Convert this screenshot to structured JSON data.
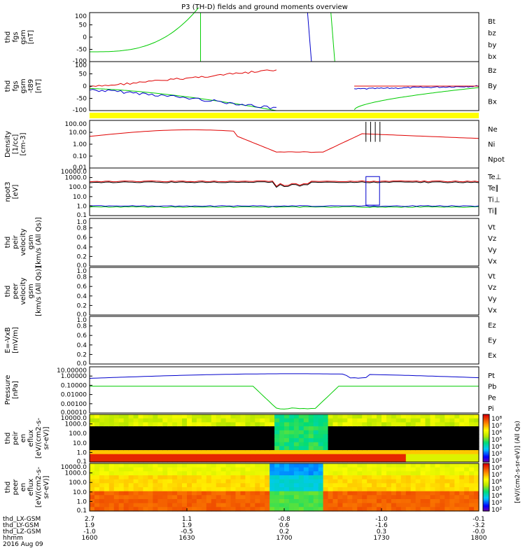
{
  "title": "P3 (TH-D) fields and ground moments overview",
  "date": "2016 Aug 09",
  "colors": {
    "black": "#000000",
    "red": "#e00000",
    "green": "#00cc00",
    "blue": "#0000cc",
    "yellow": "#ffff00"
  },
  "panels": [
    {
      "id": "fgs_gsm",
      "ylabel": [
        "thd",
        "fgs",
        "gsm",
        "[nT]"
      ],
      "ticks": [
        "100",
        "50",
        "0",
        "-50",
        "-100"
      ],
      "legend": [
        {
          "t": "Bt",
          "c": "black"
        },
        {
          "t": "bz",
          "c": "red"
        },
        {
          "t": "by",
          "c": "green"
        },
        {
          "t": "bx",
          "c": "blue"
        }
      ]
    },
    {
      "id": "fgs_gsm_bg",
      "ylabel": [
        "thd",
        "fgs",
        "gsm",
        "-t89",
        "[nT]"
      ],
      "ticks": [
        "100",
        "50",
        "0",
        "-50",
        "-100"
      ],
      "legend": [
        {
          "t": "Bz",
          "c": "red"
        },
        {
          "t": "By",
          "c": "green"
        },
        {
          "t": "Bx",
          "c": "blue"
        }
      ]
    },
    {
      "id": "density",
      "ylabel": [
        "Density",
        "[1/cc]",
        "[cm-3]"
      ],
      "ticks": [
        "100.00",
        "10.00",
        "1.00",
        "0.10",
        "0.01"
      ],
      "legend": [
        {
          "t": "Ne",
          "c": "red"
        },
        {
          "t": "Ni",
          "c": "black"
        },
        {
          "t": "Npot",
          "c": "blue"
        }
      ]
    },
    {
      "id": "temp",
      "ylabel": [
        "npot3",
        "[eV]"
      ],
      "ticks": [
        "10000.0",
        "1000.0",
        "100.0",
        "10.0",
        "1.0",
        "0.1"
      ],
      "legend": [
        {
          "t": "Te⊥",
          "c": "red"
        },
        {
          "t": "Te∥",
          "c": "black"
        },
        {
          "t": "Ti⊥",
          "c": "green"
        },
        {
          "t": "Ti∥",
          "c": "green"
        }
      ]
    },
    {
      "id": "peir_vel",
      "ylabel": [
        "thd",
        "peir",
        "velocity",
        "gsm",
        "[km/s (All Qs)]"
      ],
      "ticks": [
        "1.0",
        "0.8",
        "0.6",
        "0.4",
        "0.2",
        "0.0"
      ],
      "legend": [
        {
          "t": "Vt",
          "c": "black"
        },
        {
          "t": "Vz",
          "c": "red"
        },
        {
          "t": "Vy",
          "c": "green"
        },
        {
          "t": "Vx",
          "c": "blue"
        }
      ]
    },
    {
      "id": "peer_vel",
      "ylabel": [
        "thd",
        "peer",
        "velocity",
        "gsm",
        "[km/s (All Qs)]"
      ],
      "ticks": [
        "1.0",
        "0.8",
        "0.6",
        "0.4",
        "0.2",
        "0.0"
      ],
      "legend": [
        {
          "t": "Vt",
          "c": "black"
        },
        {
          "t": "Vz",
          "c": "red"
        },
        {
          "t": "Vy",
          "c": "green"
        },
        {
          "t": "Vx",
          "c": "blue"
        }
      ]
    },
    {
      "id": "vxb",
      "ylabel": [
        "E=-VxB",
        "[mV/m]"
      ],
      "ticks": [
        "1.0",
        "0.8",
        "0.6",
        "0.4",
        "0.2",
        "0.0"
      ],
      "legend": [
        {
          "t": "Ez",
          "c": "red"
        },
        {
          "t": "Ey",
          "c": "green"
        },
        {
          "t": "Ex",
          "c": "blue"
        }
      ]
    },
    {
      "id": "pressure",
      "ylabel": [
        "Pressure",
        "[nPa]"
      ],
      "ticks": [
        "10.00000",
        "1.00000",
        "0.10000",
        "0.01000",
        "0.00100",
        "0.00010"
      ],
      "legend": [
        {
          "t": "Pt",
          "c": "black"
        },
        {
          "t": "Pb",
          "c": "red"
        },
        {
          "t": "Pe",
          "c": "green"
        },
        {
          "t": "Pi",
          "c": "blue"
        }
      ]
    },
    {
      "id": "peir_en",
      "ylabel": [
        "thd",
        "peir",
        "en",
        "eflux",
        "[eV/(cm2-s-",
        "sr-eV)]"
      ],
      "ticks": [
        "10000.0",
        "1000.0",
        "100.0",
        "10.0",
        "1.0",
        "0.1"
      ],
      "legend": []
    },
    {
      "id": "peer_en",
      "ylabel": [
        "thd",
        "peer",
        "en",
        "eflux",
        "[eV/(cm2-s-",
        "sr-eV)]"
      ],
      "ticks": [
        "10000.0",
        "1000.0",
        "100.0",
        "10.0",
        "1.0",
        "0.1"
      ],
      "legend": []
    }
  ],
  "colorbar": {
    "ticks_top": [
      "10⁸",
      "10⁷",
      "10⁶",
      "10⁵",
      "10⁴",
      "10³",
      "10²"
    ],
    "ticks_bot": [
      "10⁸",
      "10⁷",
      "10⁶",
      "10⁵",
      "10⁴",
      "10³",
      "10²"
    ],
    "label": "[eV/(cm2-s-sr-eV)] (All Qs)"
  },
  "xaxis": {
    "rows": [
      {
        "label": "thd_LX-GSM",
        "values": [
          "2.7",
          "1.1",
          "-0.8",
          "-1.0",
          "-0.1"
        ]
      },
      {
        "label": "thd_LY-GSM",
        "values": [
          "1.9",
          "1.9",
          "0.6",
          "-1.6",
          "-3.2"
        ]
      },
      {
        "label": "thd_LZ-GSM",
        "values": [
          "-1.0",
          "-0.5",
          "0.2",
          "0.3",
          "-0.0"
        ]
      },
      {
        "label": "hhmm",
        "values": [
          "1600",
          "1630",
          "1700",
          "1730",
          "1800"
        ]
      }
    ]
  },
  "chart_data": [
    {
      "type": "line",
      "title": "thd fgs gsm",
      "ylim": [
        -100,
        100
      ],
      "series": [
        {
          "name": "Bt"
        },
        {
          "name": "bz"
        },
        {
          "name": "by"
        },
        {
          "name": "bx"
        }
      ]
    },
    {
      "type": "line",
      "title": "thd fgs gsm -t89",
      "ylim": [
        -100,
        100
      ],
      "series": [
        {
          "name": "Bz"
        },
        {
          "name": "By"
        },
        {
          "name": "Bx"
        }
      ]
    },
    {
      "type": "line",
      "title": "Density",
      "ylog": true,
      "series": [
        {
          "name": "Ne"
        },
        {
          "name": "Ni"
        },
        {
          "name": "Npot"
        }
      ]
    },
    {
      "type": "line",
      "title": "npot3",
      "ylog": true,
      "series": [
        {
          "name": "Te⊥"
        },
        {
          "name": "Te∥"
        },
        {
          "name": "Ti⊥"
        },
        {
          "name": "Ti∥"
        }
      ]
    },
    {
      "type": "line",
      "title": "Pressure",
      "ylog": true,
      "series": [
        {
          "name": "Pt"
        },
        {
          "name": "Pb"
        },
        {
          "name": "Pe"
        },
        {
          "name": "Pi"
        }
      ]
    },
    {
      "type": "heatmap",
      "title": "thd peir en eflux"
    },
    {
      "type": "heatmap",
      "title": "thd peer en eflux"
    }
  ]
}
